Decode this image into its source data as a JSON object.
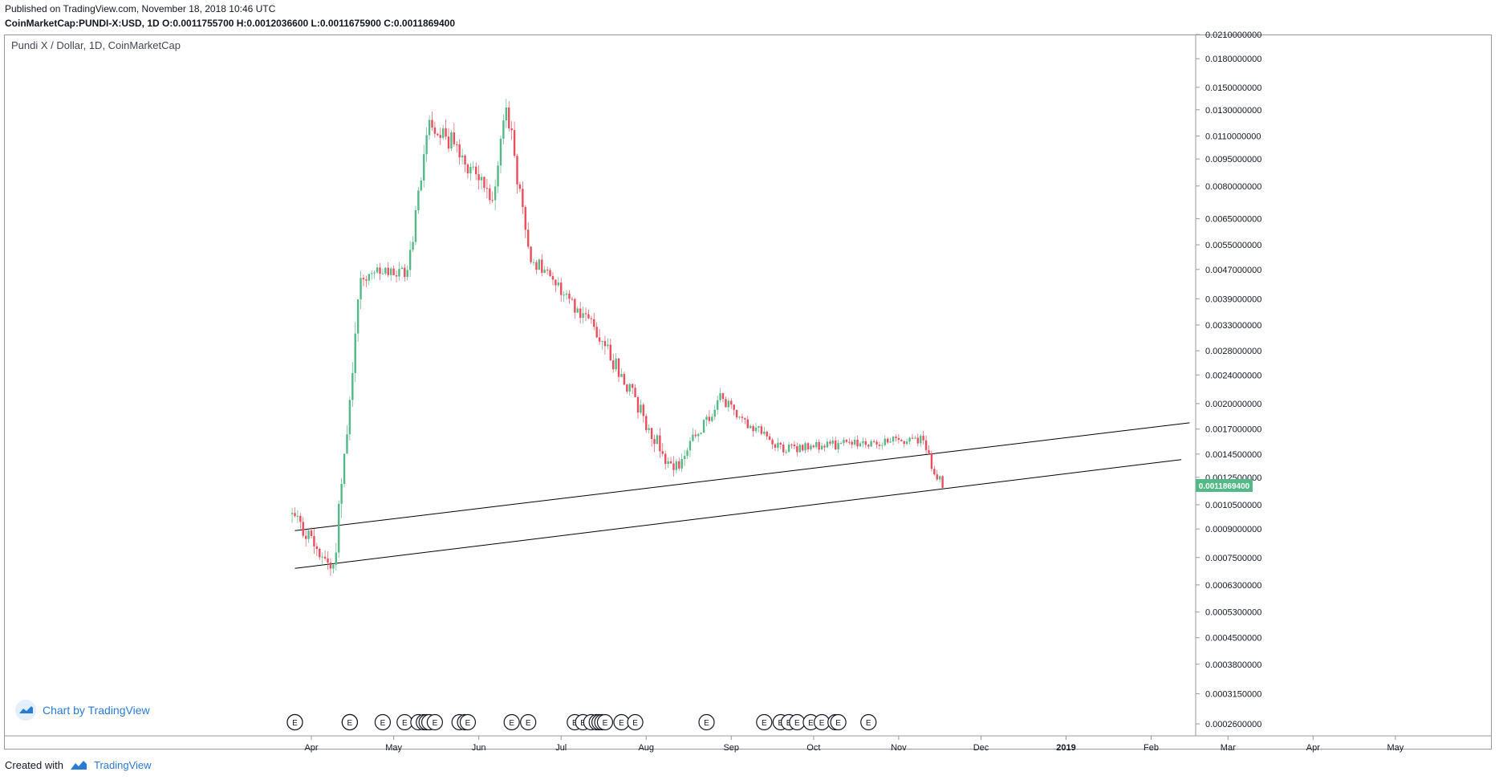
{
  "header": {
    "published": "Published on TradingView.com, November 18, 2018 10:46 UTC",
    "ohlc": "CoinMarketCap:PUNDI-X:USD, 1D  O:0.0011755700 H:0.0012036600 L:0.0011675900 C:0.0011869400"
  },
  "watermark": {
    "label": "Chart by TradingView"
  },
  "footer": {
    "created_with": "Created with",
    "brand": "TradingView"
  },
  "icons": {
    "logo": "tradingview-cloud-logo-icon",
    "event": "earnings-event-marker-icon"
  },
  "colors": {
    "up": "#53b987",
    "down": "#eb4d5c",
    "price_badge": "#53b987",
    "trendline": "#000000",
    "brand": "#2a7bd6"
  },
  "chart_data": {
    "type": "candlestick",
    "title": "Pundi X / Dollar, 1D, CoinMarketCap",
    "y_scale": "log",
    "ylim": [
      0.00023,
      0.022
    ],
    "y_ticks": [
      "0.0210000000",
      "0.0180000000",
      "0.0150000000",
      "0.0130000000",
      "0.0110000000",
      "0.0095000000",
      "0.0080000000",
      "0.0065000000",
      "0.0055000000",
      "0.0047000000",
      "0.0039000000",
      "0.0033000000",
      "0.0028000000",
      "0.0024000000",
      "0.0020000000",
      "0.0017000000",
      "0.0014500000",
      "0.0012500000",
      "0.0010500000",
      "0.0009000000",
      "0.0007500000",
      "0.0006300000",
      "0.0005300000",
      "0.0004500000",
      "0.0003800000",
      "0.0003150000",
      "0.0002600000"
    ],
    "x_ticks": [
      "Apr",
      "May",
      "Jun",
      "Jul",
      "Aug",
      "Sep",
      "Oct",
      "Nov",
      "Dec",
      "2019",
      "Feb",
      "Mar",
      "Apr",
      "May"
    ],
    "x_tick_bold": [
      false,
      false,
      false,
      false,
      false,
      false,
      false,
      false,
      false,
      true,
      false,
      false,
      false,
      false
    ],
    "last_price": "0.0011869400",
    "grid": false,
    "legend": "none",
    "series": [
      {
        "segments": [
          {
            "from": "2018-03-25",
            "to": "2018-04-10",
            "start": 0.001,
            "end": 0.0007,
            "vol": 0.06
          },
          {
            "from": "2018-04-10",
            "to": "2018-04-20",
            "start": 0.0007,
            "end": 0.0045,
            "vol": 0.1
          },
          {
            "from": "2018-04-20",
            "to": "2018-05-07",
            "start": 0.0045,
            "end": 0.0046,
            "vol": 0.05
          },
          {
            "from": "2018-05-07",
            "to": "2018-05-15",
            "start": 0.0046,
            "end": 0.0125,
            "vol": 0.07
          },
          {
            "from": "2018-05-15",
            "to": "2018-06-08",
            "start": 0.0125,
            "end": 0.0075,
            "vol": 0.07
          },
          {
            "from": "2018-06-08",
            "to": "2018-06-12",
            "start": 0.0075,
            "end": 0.014,
            "vol": 0.07
          },
          {
            "from": "2018-06-12",
            "to": "2018-06-20",
            "start": 0.014,
            "end": 0.0052,
            "vol": 0.07
          },
          {
            "from": "2018-06-20",
            "to": "2018-07-15",
            "start": 0.0052,
            "end": 0.0032,
            "vol": 0.05
          },
          {
            "from": "2018-07-15",
            "to": "2018-08-12",
            "start": 0.0032,
            "end": 0.0013,
            "vol": 0.06
          },
          {
            "from": "2018-08-12",
            "to": "2018-08-29",
            "start": 0.0013,
            "end": 0.00205,
            "vol": 0.05
          },
          {
            "from": "2018-08-29",
            "to": "2018-09-20",
            "start": 0.00205,
            "end": 0.0015,
            "vol": 0.04
          },
          {
            "from": "2018-09-20",
            "to": "2018-11-10",
            "start": 0.0015,
            "end": 0.0016,
            "vol": 0.03
          },
          {
            "from": "2018-11-10",
            "to": "2018-11-18",
            "start": 0.0016,
            "end": 0.00118,
            "vol": 0.04
          }
        ]
      }
    ],
    "trendlines": [
      {
        "from": "2018-03-26",
        "to": "2019-02-15",
        "y1": 0.00089,
        "y2": 0.00177
      },
      {
        "from": "2018-03-26",
        "to": "2019-02-12",
        "y1": 0.0007,
        "y2": 0.0014
      }
    ],
    "events": [
      "2018-03-26",
      "2018-03-26",
      "2018-04-15",
      "2018-04-15",
      "2018-04-15",
      "2018-04-27",
      "2018-05-05",
      "2018-05-10",
      "2018-05-12",
      "2018-05-13",
      "2018-05-14",
      "2018-05-16",
      "2018-05-25",
      "2018-05-27",
      "2018-05-28",
      "2018-06-13",
      "2018-06-19",
      "2018-07-06",
      "2018-07-09",
      "2018-07-12",
      "2018-07-14",
      "2018-07-15",
      "2018-07-16",
      "2018-07-17",
      "2018-07-23",
      "2018-07-28",
      "2018-08-23",
      "2018-09-13",
      "2018-09-19",
      "2018-09-22",
      "2018-09-25",
      "2018-09-30",
      "2018-10-04",
      "2018-10-09",
      "2018-10-10",
      "2018-10-21"
    ],
    "event_label": "E"
  }
}
